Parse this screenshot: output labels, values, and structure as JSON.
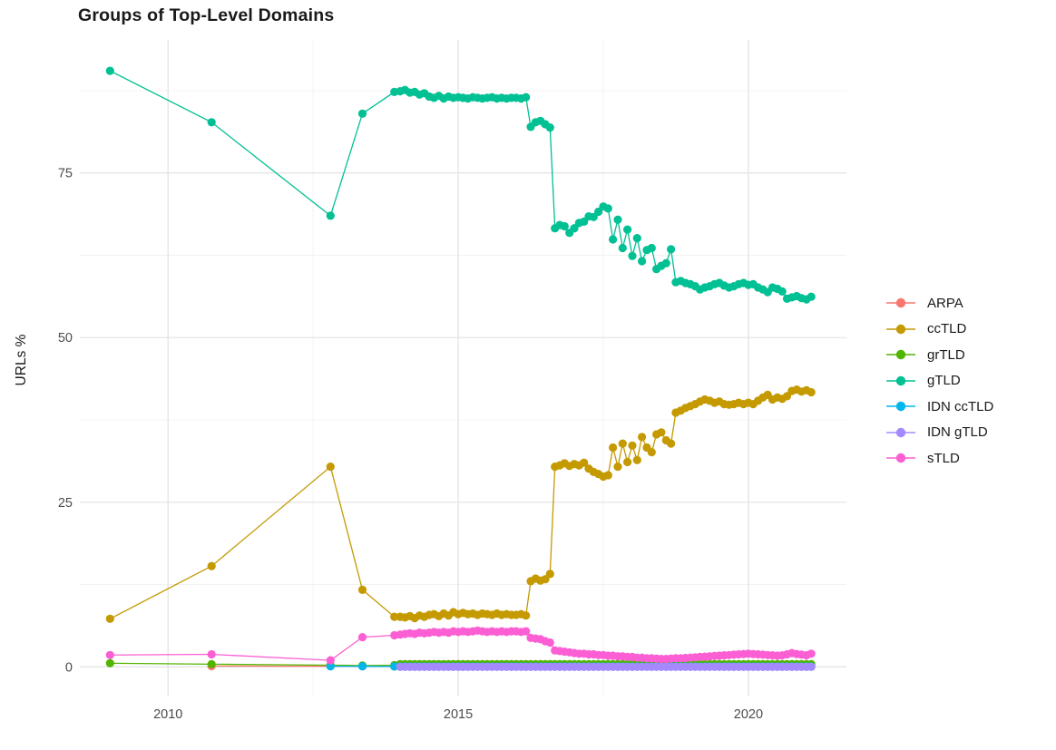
{
  "chart_data": {
    "type": "line",
    "title": "Groups of Top-Level Domains",
    "ylabel": "URLs %",
    "xlabel": "",
    "x_ticks": [
      2010,
      2015,
      2020
    ],
    "x_minor_ticks": [
      2012.5,
      2017.5
    ],
    "y_ticks": [
      0,
      25,
      50,
      75
    ],
    "y_minor_ticks": [
      12.5,
      37.5,
      62.5,
      87.5
    ],
    "x_domain": [
      2008.48,
      2021.69
    ],
    "y_domain": [
      -4.5,
      95.2
    ],
    "grid": true,
    "legend_position": "right",
    "units": "percent of URLs",
    "series": [
      {
        "name": "ARPA",
        "color": "#F8766D",
        "sparse": {
          "x": [
            2010.75,
            2012.8,
            2013.35,
            2013.9
          ],
          "y": [
            0.12,
            0.1,
            0.08,
            0.06
          ]
        },
        "dense": {
          "x0": 2014.0,
          "dx": 0.083333,
          "n": 86,
          "const": 0.05
        }
      },
      {
        "name": "ccTLD",
        "color": "#C49A00",
        "sparse": {
          "x": [
            2009.0,
            2010.75,
            2012.8,
            2013.35,
            2013.9
          ],
          "y": [
            7.3,
            15.3,
            30.4,
            11.7,
            7.6
          ]
        },
        "dense": {
          "x0": 2014.0,
          "dx": 0.083333,
          "y": [
            7.6,
            7.5,
            7.7,
            7.4,
            7.8,
            7.6,
            7.9,
            8.0,
            7.7,
            8.1,
            7.8,
            8.3,
            8.0,
            8.2,
            8.0,
            8.1,
            7.9,
            8.1,
            8.0,
            7.9,
            8.1,
            7.9,
            8.0,
            7.9,
            7.9,
            8.0,
            7.8,
            13.0,
            13.4,
            13.1,
            13.3,
            14.1,
            30.4,
            30.6,
            30.9,
            30.5,
            30.8,
            30.6,
            31.0,
            30.1,
            29.6,
            29.3,
            28.9,
            29.1,
            33.3,
            30.4,
            33.9,
            31.1,
            33.6,
            31.4,
            34.9,
            33.3,
            32.6,
            35.3,
            35.6,
            34.4,
            33.9,
            38.6,
            38.9,
            39.3,
            39.6,
            39.9,
            40.3,
            40.6,
            40.4,
            40.1,
            40.3,
            39.9,
            39.8,
            39.9,
            40.1,
            39.9,
            40.1,
            39.9,
            40.4,
            40.9,
            41.3,
            40.6,
            40.9,
            40.7,
            41.1,
            41.9,
            42.1,
            41.8,
            42.0,
            41.7
          ]
        }
      },
      {
        "name": "grTLD",
        "color": "#53B400",
        "sparse": {
          "x": [
            2009.0,
            2010.75,
            2012.8,
            2013.35,
            2013.9
          ],
          "y": [
            0.55,
            0.4,
            0.25,
            0.2,
            0.25
          ]
        },
        "dense": {
          "x0": 2014.0,
          "dx": 0.083333,
          "n": 86,
          "const": 0.4
        }
      },
      {
        "name": "gTLD",
        "color": "#00C094",
        "sparse": {
          "x": [
            2009.0,
            2010.75,
            2012.8,
            2013.35,
            2013.9
          ],
          "y": [
            90.5,
            82.7,
            68.5,
            84.0,
            87.3
          ]
        },
        "dense": {
          "x0": 2014.0,
          "dx": 0.083333,
          "y": [
            87.4,
            87.6,
            87.2,
            87.3,
            86.9,
            87.1,
            86.6,
            86.4,
            86.7,
            86.3,
            86.6,
            86.4,
            86.5,
            86.4,
            86.3,
            86.5,
            86.4,
            86.3,
            86.4,
            86.5,
            86.3,
            86.4,
            86.3,
            86.4,
            86.4,
            86.3,
            86.5,
            82.0,
            82.7,
            82.9,
            82.4,
            81.9,
            66.6,
            67.1,
            66.9,
            65.9,
            66.6,
            67.4,
            67.6,
            68.4,
            68.3,
            69.1,
            69.9,
            69.6,
            64.9,
            67.9,
            63.6,
            66.4,
            62.4,
            65.1,
            61.6,
            63.3,
            63.6,
            60.4,
            60.9,
            61.3,
            63.4,
            58.4,
            58.6,
            58.3,
            58.1,
            57.8,
            57.3,
            57.6,
            57.8,
            58.1,
            58.3,
            57.9,
            57.6,
            57.8,
            58.1,
            58.3,
            58.0,
            58.1,
            57.6,
            57.3,
            56.9,
            57.6,
            57.4,
            57.0,
            55.9,
            56.1,
            56.3,
            56.0,
            55.8,
            56.2
          ]
        }
      },
      {
        "name": "IDN ccTLD",
        "color": "#00B6EB",
        "sparse": {
          "x": [
            2012.8,
            2013.35,
            2013.9
          ],
          "y": [
            0.1,
            0.08,
            0.06
          ]
        },
        "dense": {
          "x0": 2014.0,
          "dx": 0.083333,
          "n": 86,
          "const": 0.05
        }
      },
      {
        "name": "IDN gTLD",
        "color": "#A58AFF",
        "sparse": {
          "x": [],
          "y": []
        },
        "dense": {
          "x0": 2014.0,
          "dx": 0.083333,
          "n": 86,
          "const": 0.0
        }
      },
      {
        "name": "sTLD",
        "color": "#FB5FD3",
        "sparse": {
          "x": [
            2009.0,
            2010.75,
            2012.8,
            2013.35,
            2013.9
          ],
          "y": [
            1.8,
            1.9,
            1.0,
            4.5,
            4.8
          ]
        },
        "dense": {
          "x0": 2014.0,
          "dx": 0.083333,
          "y": [
            4.9,
            5.0,
            5.1,
            5.0,
            5.2,
            5.1,
            5.2,
            5.3,
            5.2,
            5.3,
            5.2,
            5.4,
            5.3,
            5.4,
            5.3,
            5.4,
            5.5,
            5.4,
            5.3,
            5.4,
            5.3,
            5.4,
            5.3,
            5.4,
            5.4,
            5.3,
            5.4,
            4.4,
            4.3,
            4.2,
            3.9,
            3.7,
            2.5,
            2.4,
            2.3,
            2.2,
            2.1,
            2.0,
            2.0,
            1.9,
            1.9,
            1.8,
            1.8,
            1.7,
            1.7,
            1.6,
            1.6,
            1.5,
            1.5,
            1.4,
            1.4,
            1.3,
            1.3,
            1.25,
            1.2,
            1.2,
            1.25,
            1.3,
            1.3,
            1.35,
            1.4,
            1.45,
            1.5,
            1.55,
            1.6,
            1.65,
            1.7,
            1.75,
            1.8,
            1.85,
            1.9,
            1.95,
            2.0,
            1.95,
            1.9,
            1.85,
            1.8,
            1.75,
            1.7,
            1.75,
            1.9,
            2.1,
            1.95,
            1.85,
            1.75,
            2.0
          ]
        }
      }
    ],
    "style": {
      "grid_major_color": "#e4e4e4",
      "grid_minor_color": "#f0f0f0",
      "axis_text_color": "#4d4d4d",
      "title_color": "#1a1a1a",
      "background": "#ffffff"
    }
  }
}
